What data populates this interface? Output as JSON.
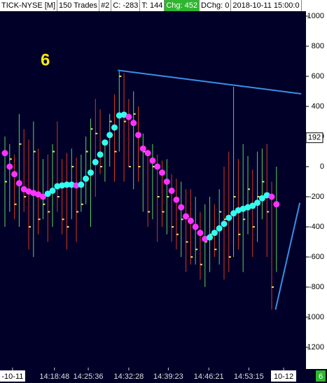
{
  "header": {
    "symbol": "TICK-NYSE [M]",
    "trades": "150 Trades",
    "num": "#2",
    "close": "C: -283",
    "ticks": "T: 144",
    "chg": "Chg: 452",
    "dchg": "DChg: 0",
    "datetime": "2018-10-11 15:00:0"
  },
  "corner_badge": "6",
  "chart_data": {
    "type": "bar-range",
    "annotation": "6",
    "last_price": 192,
    "ylim": [
      -1335,
      1028
    ],
    "yticks": [
      1000,
      800,
      600,
      400,
      200,
      0,
      -200,
      -400,
      -600,
      -800,
      -1000,
      -1200
    ],
    "xlim": [
      -1.03,
      63.2
    ],
    "xticks": [
      {
        "value": 1.6,
        "label": "-10-11"
      },
      {
        "value": 10.4,
        "label": "14:18:48"
      },
      {
        "value": 17.5,
        "label": "14:25:36"
      },
      {
        "value": 26,
        "label": "14:32:28"
      },
      {
        "value": 34.3,
        "label": "14:39:23"
      },
      {
        "value": 42.8,
        "label": "14:46:21"
      },
      {
        "value": 51.2,
        "label": "14:53:15"
      },
      {
        "value": 58.5,
        "label": "10-12"
      }
    ],
    "high": [
      200,
      150,
      80,
      350,
      250,
      180,
      300,
      120,
      50,
      80,
      150,
      300,
      50,
      90,
      120,
      60,
      80,
      200,
      320,
      450,
      380,
      180,
      350,
      480,
      640,
      620,
      450,
      500,
      400,
      220,
      100,
      150,
      80,
      40,
      50,
      -50,
      -80,
      -100,
      -150,
      -150,
      -200,
      -300,
      -250,
      -200,
      -250,
      -150,
      0,
      100,
      530,
      50,
      150,
      70,
      -20,
      100,
      120,
      150,
      -100,
      0
    ],
    "low": [
      -400,
      -300,
      -350,
      -400,
      -300,
      -550,
      -600,
      -450,
      -350,
      -500,
      -400,
      -300,
      -450,
      -550,
      -350,
      -500,
      -300,
      -250,
      -400,
      -200,
      -50,
      -100,
      0,
      -100,
      100,
      -100,
      0,
      -150,
      -100,
      -300,
      -400,
      -350,
      -500,
      -400,
      -450,
      -500,
      -550,
      -600,
      -700,
      -650,
      -650,
      -750,
      -800,
      -700,
      -600,
      -650,
      -750,
      -700,
      -600,
      -550,
      -700,
      -450,
      -600,
      -500,
      -350,
      -600,
      -950,
      -700
    ],
    "close": [
      -100,
      50,
      -250,
      150,
      -200,
      -400,
      100,
      -350,
      -250,
      -300,
      100,
      -200,
      -350,
      -400,
      0,
      -300,
      -250,
      100,
      250,
      220,
      0,
      150,
      300,
      100,
      600,
      300,
      0,
      350,
      0,
      100,
      -300,
      0,
      -200,
      -300,
      -200,
      -400,
      -450,
      -350,
      -500,
      -600,
      -550,
      -650,
      -500,
      -450,
      -550,
      -300,
      -350,
      -600,
      -200,
      -450,
      -350,
      -150,
      -400,
      -200,
      -100,
      -300,
      -800,
      -250
    ],
    "ma": [
      90,
      0,
      -50,
      -110,
      -150,
      -165,
      -175,
      -185,
      -200,
      -180,
      -160,
      -130,
      -125,
      -120,
      -120,
      -125,
      -120,
      -80,
      -40,
      30,
      80,
      160,
      210,
      260,
      340,
      345,
      330,
      290,
      210,
      120,
      90,
      40,
      0,
      -40,
      -100,
      -160,
      -220,
      -270,
      -330,
      -360,
      -400,
      -440,
      -480,
      -470,
      -440,
      -410,
      -380,
      -340,
      -310,
      -290,
      -280,
      -270,
      -260,
      -240,
      -210,
      -190,
      -200,
      -250
    ],
    "up_color": "#5fd35f",
    "down_color": "#d8381f",
    "close_color": "#e8e86a",
    "ma_up_color": "#33ffee",
    "ma_down_color": "#ff33ff",
    "trendlines": [
      {
        "x": [
          23.7,
          62.2
        ],
        "y": [
          640,
          484
        ]
      },
      {
        "x": [
          56.8,
          61.9
        ],
        "y": [
          -950,
          -240
        ]
      }
    ],
    "trend_color": "#3a8ee6"
  }
}
